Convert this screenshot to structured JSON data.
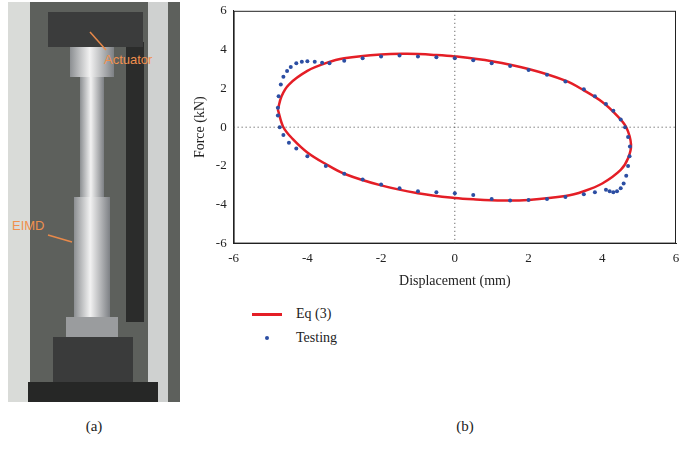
{
  "photo": {
    "caption": "(a)",
    "labels": [
      "Actuator",
      "EIMD"
    ]
  },
  "chart_data": {
    "type": "scatter",
    "title": "(b)",
    "x_label": "Displacement (mm)",
    "y_label": "Force (kN)",
    "xlim": [
      -6,
      6
    ],
    "ylim": [
      -6,
      6
    ],
    "xticks": [
      -6,
      -4,
      -2,
      0,
      2,
      4,
      6
    ],
    "yticks": [
      -6,
      -4,
      -2,
      0,
      2,
      4,
      6
    ],
    "grid": false,
    "legend": "bottom",
    "series": [
      {
        "name": "Eq (3)",
        "color": "#e41e26",
        "type": "line",
        "marker": "none",
        "line_style": "solid",
        "x": [
          -4.8,
          -4.7,
          -4.5,
          -4.0,
          -3.5,
          -3.0,
          -2.0,
          -1.3,
          -0.5,
          0,
          1.0,
          2.0,
          3.0,
          3.5,
          4.0,
          4.4,
          4.65,
          4.78,
          4.7,
          4.5,
          4.0,
          3.5,
          3.0,
          2.0,
          1.3,
          0.5,
          0,
          -1.0,
          -2.0,
          -3.0,
          -3.5,
          -4.0,
          -4.4,
          -4.65,
          -4.8
        ],
        "values": [
          0.9,
          1.6,
          2.2,
          2.9,
          3.3,
          3.55,
          3.75,
          3.78,
          3.72,
          3.65,
          3.4,
          3.0,
          2.4,
          1.9,
          1.3,
          0.6,
          0,
          -0.9,
          -1.6,
          -2.2,
          -2.9,
          -3.3,
          -3.55,
          -3.75,
          -3.78,
          -3.72,
          -3.65,
          -3.4,
          -3.0,
          -2.4,
          -1.9,
          -1.3,
          -0.6,
          0,
          0.9
        ]
      },
      {
        "name": "Testing",
        "color": "#2c4ea3",
        "type": "scatter",
        "marker": "circle",
        "x": [
          -4.8,
          -4.78,
          -4.72,
          -4.65,
          -4.55,
          -4.45,
          -4.3,
          -4.15,
          -4.0,
          -3.8,
          -3.6,
          -3.4,
          -3.0,
          -2.5,
          -2.0,
          -1.5,
          -1.0,
          -0.5,
          0,
          0.5,
          1.0,
          1.5,
          2.0,
          2.5,
          3.0,
          3.5,
          3.8,
          4.1,
          4.3,
          4.5,
          4.62,
          4.7,
          4.75,
          4.74,
          4.7,
          4.65,
          4.58,
          4.5,
          4.4,
          4.3,
          4.2,
          4.1,
          3.8,
          3.5,
          3.0,
          2.5,
          2.0,
          1.5,
          1.0,
          0.5,
          0,
          -0.5,
          -1.0,
          -1.5,
          -2.0,
          -2.5,
          -3.0,
          -3.5,
          -4.0,
          -4.3,
          -4.5,
          -4.65,
          -4.75,
          -4.8
        ],
        "values": [
          1.0,
          1.6,
          2.2,
          2.6,
          2.9,
          3.1,
          3.3,
          3.38,
          3.4,
          3.38,
          3.32,
          3.3,
          3.42,
          3.55,
          3.65,
          3.7,
          3.65,
          3.6,
          3.55,
          3.45,
          3.3,
          3.15,
          2.95,
          2.7,
          2.35,
          1.95,
          1.6,
          1.2,
          0.85,
          0.4,
          0.0,
          -0.5,
          -1.0,
          -1.5,
          -2.0,
          -2.5,
          -2.9,
          -3.15,
          -3.3,
          -3.35,
          -3.3,
          -3.22,
          -3.35,
          -3.45,
          -3.6,
          -3.7,
          -3.75,
          -3.78,
          -3.7,
          -3.5,
          -3.4,
          -3.35,
          -3.3,
          -3.15,
          -2.95,
          -2.7,
          -2.4,
          -2.0,
          -1.5,
          -1.1,
          -0.8,
          -0.4,
          0.0,
          0.6
        ]
      }
    ]
  }
}
